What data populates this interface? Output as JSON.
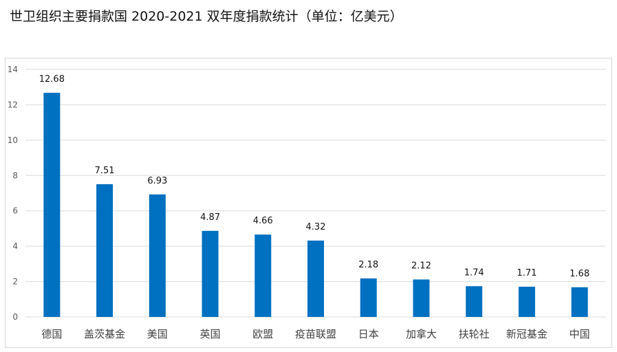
{
  "title": "世卫组织主要捐款国 2020-2021 双年度捐款统计（单位：亿美元）",
  "chart_data": {
    "type": "bar",
    "categories": [
      "德国",
      "盖茨基金",
      "美国",
      "英国",
      "欧盟",
      "疫苗联盟",
      "日本",
      "加拿大",
      "扶轮社",
      "新冠基金",
      "中国"
    ],
    "values": [
      12.68,
      7.51,
      6.93,
      4.87,
      4.66,
      4.32,
      2.18,
      2.12,
      1.74,
      1.71,
      1.68
    ],
    "value_labels": [
      "12.68",
      "7.51",
      "6.93",
      "4.87",
      "4.66",
      "4.32",
      "2.18",
      "2.12",
      "1.74",
      "1.71",
      "1.68"
    ],
    "ylim": [
      0,
      14
    ],
    "yticks": [
      "0",
      "2",
      "4",
      "6",
      "8",
      "10",
      "12",
      "14"
    ],
    "grid": true,
    "legend": "none",
    "bar_color": "#0070c0",
    "grid_color": "#d9d9d9"
  }
}
